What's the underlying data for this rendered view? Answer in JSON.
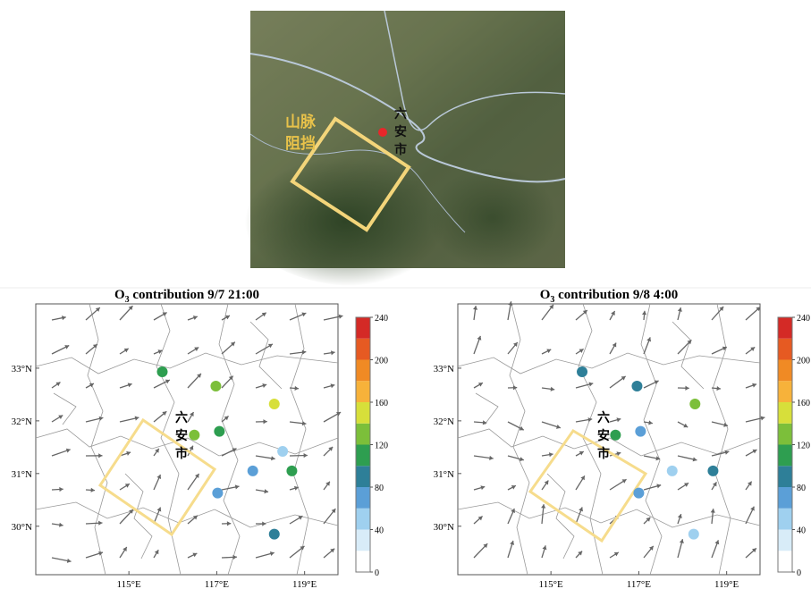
{
  "satellite": {
    "mountain_label": [
      "山脉",
      "阻挡"
    ],
    "city_label": [
      "六",
      "安",
      "市"
    ]
  },
  "chart_data": [
    {
      "type": "scatter",
      "title_parts": [
        "O",
        "3",
        " contribution 9/7 21:00"
      ],
      "city_label": [
        "六",
        "安",
        "市"
      ],
      "xlim": [
        112.88,
        119.76
      ],
      "ylim": [
        29.08,
        34.22
      ],
      "xticks": [
        {
          "value": 115,
          "label": "115°E"
        },
        {
          "value": 117,
          "label": "117°E"
        },
        {
          "value": 119,
          "label": "119°E"
        }
      ],
      "yticks": [
        {
          "value": 30,
          "label": "30°N"
        },
        {
          "value": 31,
          "label": "31°N"
        },
        {
          "value": 32,
          "label": "32°N"
        },
        {
          "value": 33,
          "label": "33°N"
        }
      ],
      "x": [
        115.76,
        116.98,
        118.31,
        116.49,
        117.06,
        118.5,
        117.82,
        118.71,
        117.02,
        118.31
      ],
      "y": [
        32.93,
        32.66,
        32.32,
        31.73,
        31.8,
        31.42,
        31.05,
        31.05,
        30.63,
        29.85
      ],
      "values": [
        110,
        130,
        150,
        130,
        110,
        50,
        70,
        110,
        70,
        90
      ],
      "colorbar": {
        "lim": [
          0,
          240
        ],
        "ticks": [
          0,
          40,
          80,
          120,
          160,
          200,
          240
        ],
        "colors": [
          "#ffffff",
          "#d8ecf8",
          "#9fd0ef",
          "#5b9fd7",
          "#2e7f98",
          "#2e9e50",
          "#7cbf3a",
          "#d7df3a",
          "#f7b23a",
          "#f08a24",
          "#e65a22",
          "#d42a26"
        ]
      }
    },
    {
      "type": "scatter",
      "title_parts": [
        "O",
        "3",
        " contribution 9/8 4:00"
      ],
      "city_label": [
        "六",
        "安",
        "市"
      ],
      "xlim": [
        112.88,
        119.76
      ],
      "ylim": [
        29.08,
        34.22
      ],
      "xticks": [
        {
          "value": 115,
          "label": "115°E"
        },
        {
          "value": 117,
          "label": "117°E"
        },
        {
          "value": 119,
          "label": "119°E"
        }
      ],
      "yticks": [
        {
          "value": 30,
          "label": "30°N"
        },
        {
          "value": 31,
          "label": "31°N"
        },
        {
          "value": 32,
          "label": "32°N"
        },
        {
          "value": 33,
          "label": "33°N"
        }
      ],
      "x": [
        115.71,
        116.96,
        118.28,
        116.47,
        117.04,
        117.76,
        118.69,
        117.0,
        118.25
      ],
      "y": [
        32.93,
        32.66,
        32.32,
        31.73,
        31.8,
        31.05,
        31.05,
        30.63,
        29.85
      ],
      "values": [
        90,
        90,
        130,
        110,
        70,
        40,
        90,
        70,
        50
      ],
      "colorbar": {
        "lim": [
          0,
          240
        ],
        "ticks": [
          0,
          40,
          80,
          120,
          160,
          200,
          240
        ],
        "colors": [
          "#ffffff",
          "#d8ecf8",
          "#9fd0ef",
          "#5b9fd7",
          "#2e7f98",
          "#2e9e50",
          "#7cbf3a",
          "#d7df3a",
          "#f7b23a",
          "#f08a24",
          "#e65a22",
          "#d42a26"
        ]
      }
    }
  ]
}
